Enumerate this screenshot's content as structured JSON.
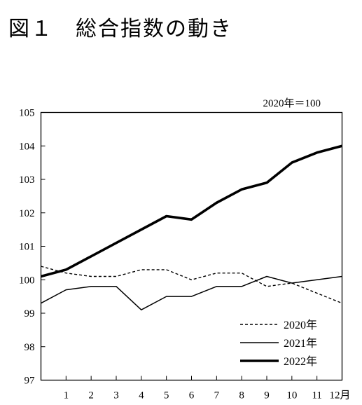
{
  "figure_title": "図１　総合指数の動き",
  "chart_data": {
    "type": "line",
    "title": "図１　総合指数の動き",
    "unit_note": "2020年＝100",
    "x": [
      0,
      1,
      2,
      3,
      4,
      5,
      6,
      7,
      8,
      9,
      10,
      11,
      12
    ],
    "x_tick_labels": [
      "1",
      "2",
      "3",
      "4",
      "5",
      "6",
      "7",
      "8",
      "9",
      "10",
      "11",
      "12月"
    ],
    "xlim": [
      0,
      12
    ],
    "ylim": [
      97,
      105
    ],
    "y_ticks": [
      "97",
      "98",
      "99",
      "100",
      "101",
      "102",
      "103",
      "104",
      "105"
    ],
    "grid": false,
    "legend_position": "bottom-right",
    "series": [
      {
        "name": "2020年",
        "style": "dashed",
        "color": "#000000",
        "values": [
          100.4,
          100.2,
          100.1,
          100.1,
          100.3,
          100.3,
          100.0,
          100.2,
          100.2,
          99.8,
          99.9,
          99.6,
          99.3
        ]
      },
      {
        "name": "2021年",
        "style": "solid",
        "color": "#000000",
        "values": [
          99.3,
          99.7,
          99.8,
          99.8,
          99.1,
          99.5,
          99.5,
          99.8,
          99.8,
          100.1,
          99.9,
          100.0,
          100.1
        ]
      },
      {
        "name": "2022年",
        "style": "bold",
        "color": "#000000",
        "values": [
          100.1,
          100.3,
          100.7,
          101.1,
          101.5,
          101.9,
          101.8,
          102.3,
          102.7,
          102.9,
          103.5,
          103.8,
          104.0
        ]
      }
    ]
  }
}
